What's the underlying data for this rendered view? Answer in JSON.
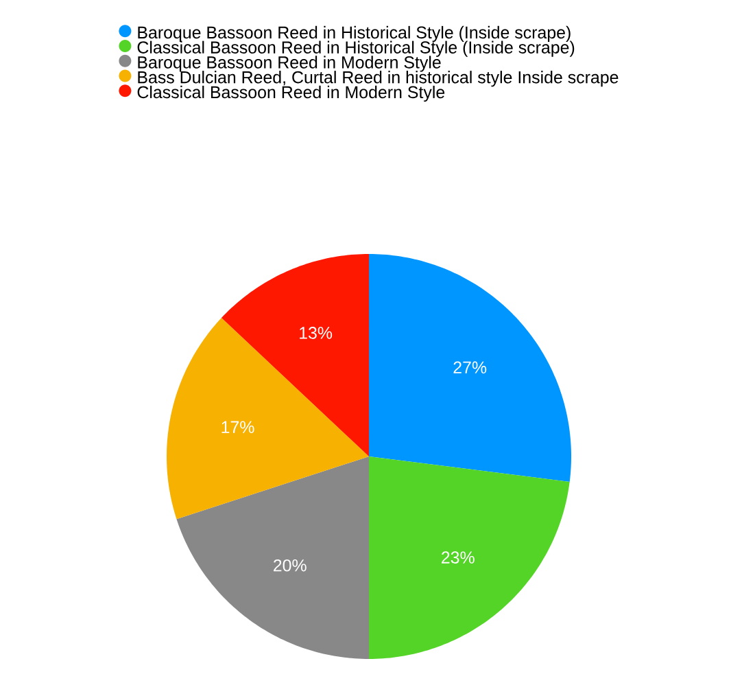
{
  "chart_data": {
    "type": "pie",
    "categories": [
      "Baroque Bassoon Reed in Historical Style (Inside scrape)",
      "Classical Bassoon Reed in Historical Style (Inside scrape)",
      "Baroque Bassoon Reed in Modern Style",
      "Bass Dulcian Reed, Curtal Reed in historical style Inside scrape",
      "Classical Bassoon Reed in Modern Style"
    ],
    "values": [
      27,
      23,
      20,
      17,
      13
    ],
    "colors": [
      "#0096ff",
      "#54d427",
      "#888888",
      "#f7b100",
      "#ff1800"
    ],
    "value_labels": [
      "27%",
      "23%",
      "20%",
      "17%",
      "13%"
    ],
    "legend": "top"
  }
}
